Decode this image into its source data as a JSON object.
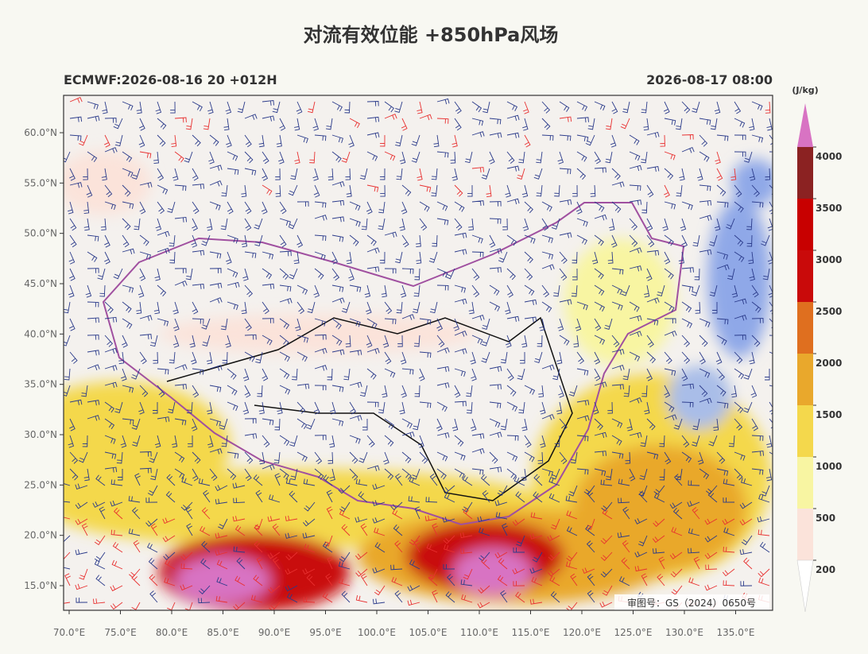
{
  "header": {
    "title": "对流有效位能 +850hPa风场",
    "left": "ECMWF:2026-08-16 20 +012H",
    "right": "2026-08-17 08:00"
  },
  "map": {
    "lat_ticks": [
      {
        "value": 60,
        "label": "60.0°N"
      },
      {
        "value": 55,
        "label": "55.0°N"
      },
      {
        "value": 50,
        "label": "50.0°N"
      },
      {
        "value": 45,
        "label": "45.0°N"
      },
      {
        "value": 40,
        "label": "40.0°N"
      },
      {
        "value": 35,
        "label": "35.0°N"
      },
      {
        "value": 30,
        "label": "30.0°N"
      },
      {
        "value": 25,
        "label": "25.0°N"
      },
      {
        "value": 20,
        "label": "20.0°N"
      },
      {
        "value": 15,
        "label": "15.0°N"
      }
    ],
    "lon_ticks": [
      {
        "value": 70,
        "label": "70.0°E"
      },
      {
        "value": 75,
        "label": "75.0°E"
      },
      {
        "value": 80,
        "label": "80.0°E"
      },
      {
        "value": 85,
        "label": "85.0°E"
      },
      {
        "value": 90,
        "label": "90.0°E"
      },
      {
        "value": 95,
        "label": "95.0°E"
      },
      {
        "value": 100,
        "label": "100.0°E"
      },
      {
        "value": 105,
        "label": "105.0°E"
      },
      {
        "value": 110,
        "label": "110.0°E"
      },
      {
        "value": 115,
        "label": "115.0°E"
      },
      {
        "value": 120,
        "label": "120.0°E"
      },
      {
        "value": 125,
        "label": "125.0°E"
      },
      {
        "value": 130,
        "label": "130.0°E"
      },
      {
        "value": 135,
        "label": "135.0°E"
      }
    ],
    "watermark": "审图号：GS（2024）0650号"
  },
  "colorbar": {
    "unit": "(J/kg)",
    "levels": [
      200,
      500,
      1000,
      1500,
      2000,
      2500,
      3000,
      3500,
      4000
    ],
    "colors": [
      "#fbe3da",
      "#f8f5a2",
      "#f4d84c",
      "#e9a82c",
      "#df6f1f",
      "#c90a0a",
      "#c80000",
      "#8b2222"
    ],
    "over_color": "#d873c3",
    "under_color": "#ffffff"
  }
}
